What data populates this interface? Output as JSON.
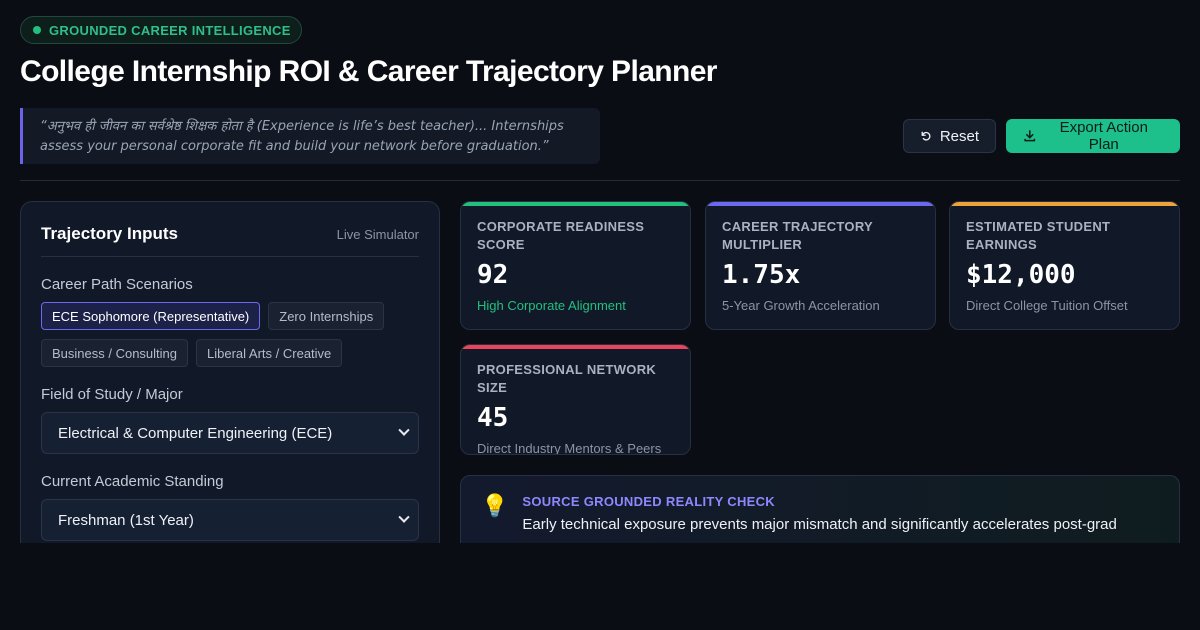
{
  "header": {
    "badge": "GROUNDED CAREER INTELLIGENCE",
    "title": "College Internship ROI & Career Trajectory Planner",
    "quote": "“अनुभव ही जीवन का सर्वश्रेष्ठ शिक्षक होता है (Experience is life’s best teacher)... Internships assess your personal corporate fit and build your network before graduation.”"
  },
  "actions": {
    "reset_label": "Reset",
    "export_label": "Export Action Plan"
  },
  "inputs": {
    "title": "Trajectory Inputs",
    "tag": "Live Simulator",
    "scenarios_label": "Career Path Scenarios",
    "scenarios": [
      "ECE Sophomore (Representative)",
      "Zero Internships",
      "Business / Consulting",
      "Liberal Arts / Creative"
    ],
    "active_scenario": 0,
    "major_label": "Field of Study / Major",
    "major_value": "Electrical & Computer Engineering (ECE)",
    "standing_label": "Current Academic Standing",
    "standing_value": "Freshman (1st Year)"
  },
  "metrics": [
    {
      "label": "CORPORATE READINESS SCORE",
      "value": "92",
      "sub": "High Corporate Alignment",
      "accent": "#22c07d"
    },
    {
      "label": "CAREER TRAJECTORY MULTIPLIER",
      "value": "1.75x",
      "sub": "5-Year Growth Acceleration",
      "accent": "#6d68f0"
    },
    {
      "label": "ESTIMATED STUDENT EARNINGS",
      "value": "$12,000",
      "sub": "Direct College Tuition Offset",
      "accent": "#f0a23a"
    },
    {
      "label": "PROFESSIONAL NETWORK SIZE",
      "value": "45",
      "sub": "Direct Industry Mentors & Peers",
      "accent": "#e8455c"
    }
  ],
  "reality": {
    "title": "SOURCE GROUNDED REALITY CHECK",
    "text": "Early technical exposure prevents major mismatch and significantly accelerates post-grad"
  }
}
